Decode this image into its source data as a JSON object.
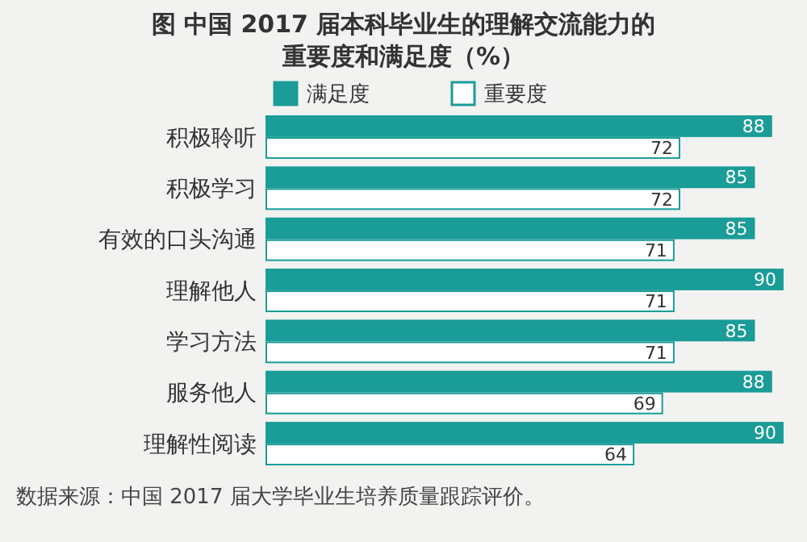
{
  "chart_data": {
    "type": "bar",
    "orientation": "horizontal",
    "title": "图  中国 2017 届本科毕业生的理解交流能力的重要度和满足度（%）",
    "categories": [
      "积极聆听",
      "积极学习",
      "有效的口头沟通",
      "理解他人",
      "学习方法",
      "服务他人",
      "理解性阅读"
    ],
    "series": [
      {
        "name": "满足度",
        "color": "#1a9c98",
        "values": [
          88,
          85,
          85,
          90,
          85,
          88,
          90
        ]
      },
      {
        "name": "重要度",
        "color": "#ffffff",
        "values": [
          72,
          72,
          71,
          71,
          71,
          69,
          64
        ]
      }
    ],
    "data_labels": true,
    "legend": "top",
    "grid": false,
    "annotations": [
      "数据来源：中国 2017 届大学毕业生培养质量跟踪评价。"
    ]
  }
}
